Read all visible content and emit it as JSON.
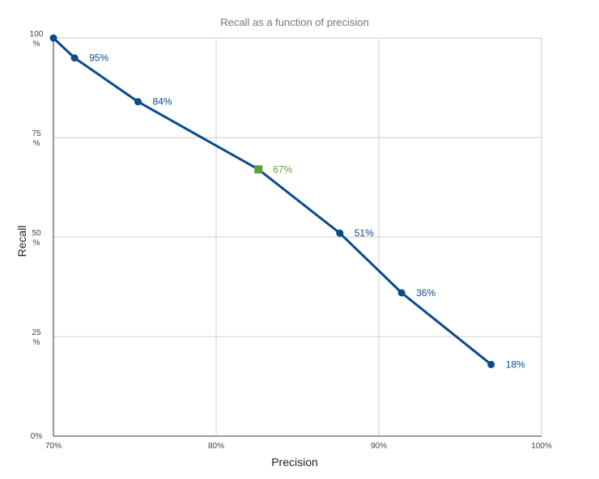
{
  "chart_data": {
    "type": "line",
    "title": "Recall as a function of precision",
    "xlabel": "Precision",
    "ylabel": "Recall",
    "xlim": [
      70,
      100
    ],
    "ylim": [
      0,
      100
    ],
    "x_ticks": [
      "70%",
      "80%",
      "90%",
      "100%"
    ],
    "y_ticks": [
      {
        "value": 0,
        "lines": [
          "0%"
        ]
      },
      {
        "value": 25,
        "lines": [
          "25",
          "%"
        ]
      },
      {
        "value": 50,
        "lines": [
          "50",
          "%"
        ]
      },
      {
        "value": 75,
        "lines": [
          "75",
          "%"
        ]
      },
      {
        "value": 100,
        "lines": [
          "100",
          "%"
        ]
      }
    ],
    "grid": true,
    "line_color": "#0b4a8b",
    "highlight_color": "#5aa03a",
    "grid_color": "#cccccc",
    "points": [
      {
        "x": 70.0,
        "y": 100,
        "label": ""
      },
      {
        "x": 71.3,
        "y": 95,
        "label": "95%"
      },
      {
        "x": 75.2,
        "y": 84,
        "label": "84%"
      },
      {
        "x": 82.6,
        "y": 67,
        "label": "67%",
        "highlight": true
      },
      {
        "x": 87.6,
        "y": 51,
        "label": "51%"
      },
      {
        "x": 91.4,
        "y": 36,
        "label": "36%"
      },
      {
        "x": 96.9,
        "y": 18,
        "label": "18%"
      }
    ]
  }
}
